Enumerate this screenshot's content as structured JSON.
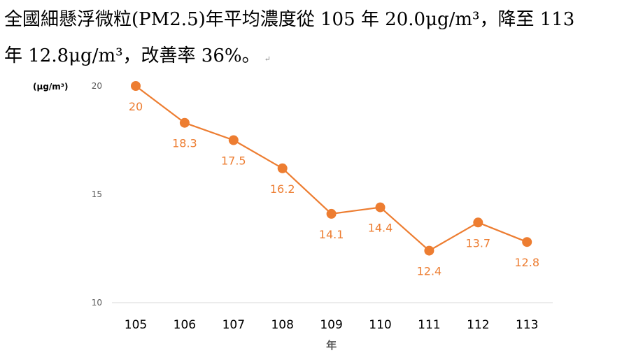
{
  "caption": {
    "line1": "全國細懸浮微粒(PM2.5)年平均濃度從 105 年 20.0μg/m³，降至 113",
    "line2": "年 12.8μg/m³，改善率 36%。",
    "return_mark": "↵"
  },
  "colors": {
    "series": "#ED7D31",
    "axis": "#D9D9D9",
    "tick_text": "#595959",
    "category_text": "#000000"
  },
  "chart_data": {
    "type": "line",
    "title": "",
    "unit_label": "(μg/m³)",
    "xlabel": "年",
    "ylabel": "",
    "categories": [
      "105",
      "106",
      "107",
      "108",
      "109",
      "110",
      "111",
      "112",
      "113"
    ],
    "series": [
      {
        "values": [
          20,
          18.3,
          17.5,
          16.2,
          14.1,
          14.4,
          12.4,
          13.7,
          12.8
        ],
        "labels": [
          "20",
          "18.3",
          "17.5",
          "16.2",
          "14.1",
          "14.4",
          "12.4",
          "13.7",
          "12.8"
        ]
      }
    ],
    "yticks": [
      "10",
      "15",
      "20"
    ],
    "ylim": [
      10,
      20
    ],
    "grid": false,
    "legend": "none",
    "marker": "circle",
    "data_labels": "below"
  }
}
